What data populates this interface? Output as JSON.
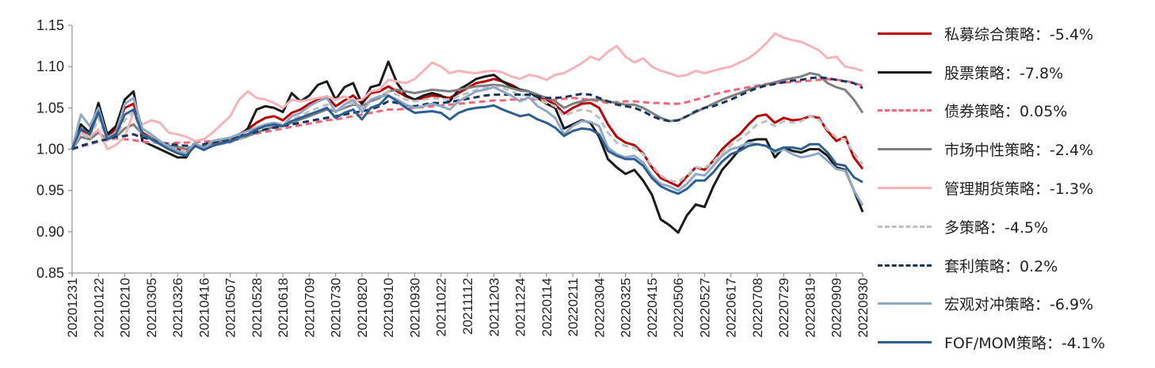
{
  "chart_data": {
    "type": "line",
    "title": "",
    "xlabel": "",
    "ylabel": "",
    "ylim": [
      0.85,
      1.15
    ],
    "yticks": [
      "0.85",
      "0.90",
      "0.95",
      "1.00",
      "1.05",
      "1.10",
      "1.15"
    ],
    "grid": false,
    "legend_position": "right",
    "x": [
      "20201231",
      "20210108",
      "20210115",
      "20210122",
      "20210129",
      "20210205",
      "20210210",
      "20210219",
      "20210226",
      "20210305",
      "20210312",
      "20210319",
      "20210326",
      "20210402",
      "20210409",
      "20210416",
      "20210423",
      "20210430",
      "20210507",
      "20210514",
      "20210521",
      "20210528",
      "20210604",
      "20210611",
      "20210618",
      "20210625",
      "20210702",
      "20210709",
      "20210716",
      "20210723",
      "20210730",
      "20210806",
      "20210813",
      "20210820",
      "20210827",
      "20210903",
      "20210910",
      "20210917",
      "20210924",
      "20210930",
      "20211008",
      "20211015",
      "20211022",
      "20211029",
      "20211105",
      "20211112",
      "20211119",
      "20211126",
      "20211203",
      "20211210",
      "20211217",
      "20211224",
      "20211231",
      "20220107",
      "20220114",
      "20220121",
      "20220128",
      "20220211",
      "20220218",
      "20220225",
      "20220304",
      "20220311",
      "20220318",
      "20220325",
      "20220401",
      "20220408",
      "20220415",
      "20220422",
      "20220429",
      "20220506",
      "20220513",
      "20220520",
      "20220527",
      "20220603",
      "20220610",
      "20220617",
      "20220624",
      "20220701",
      "20220708",
      "20220715",
      "20220722",
      "20220729",
      "20220805",
      "20220812",
      "20220819",
      "20220826",
      "20220902",
      "20220909",
      "20220916",
      "20220923",
      "20220930"
    ],
    "x_tick_labels": [
      "20201231",
      "20210122",
      "20210210",
      "20210305",
      "20210326",
      "20210416",
      "20210507",
      "20210528",
      "20210618",
      "20210709",
      "20210730",
      "20210820",
      "20210910",
      "20210930",
      "20211022",
      "20211112",
      "20211203",
      "20211224",
      "20220114",
      "20220211",
      "20220304",
      "20220325",
      "20220415",
      "20220506",
      "20220527",
      "20220617",
      "20220708",
      "20220729",
      "20220819",
      "20220909",
      "20220930"
    ],
    "series": [
      {
        "name": "私募综合策略：-5.4%",
        "color": "#C00000",
        "dash": "solid",
        "values": [
          1.0,
          1.024,
          1.016,
          1.047,
          1.015,
          1.025,
          1.05,
          1.055,
          1.02,
          1.014,
          1.008,
          1.003,
          1.0,
          0.996,
          1.005,
          1.002,
          1.007,
          1.01,
          1.012,
          1.018,
          1.024,
          1.032,
          1.038,
          1.04,
          1.035,
          1.044,
          1.048,
          1.055,
          1.06,
          1.064,
          1.052,
          1.059,
          1.065,
          1.055,
          1.068,
          1.07,
          1.076,
          1.07,
          1.064,
          1.06,
          1.062,
          1.065,
          1.064,
          1.062,
          1.068,
          1.074,
          1.08,
          1.082,
          1.085,
          1.082,
          1.078,
          1.072,
          1.07,
          1.064,
          1.06,
          1.054,
          1.043,
          1.05,
          1.055,
          1.056,
          1.05,
          1.03,
          1.015,
          1.008,
          1.005,
          0.995,
          0.978,
          0.965,
          0.96,
          0.955,
          0.967,
          0.978,
          0.975,
          0.986,
          1.0,
          1.01,
          1.018,
          1.03,
          1.04,
          1.042,
          1.032,
          1.038,
          1.035,
          1.036,
          1.04,
          1.038,
          1.022,
          1.01,
          1.015,
          0.99,
          0.976
        ]
      },
      {
        "name": "股票策略：-7.8%",
        "color": "#1A1A1A",
        "dash": "solid",
        "values": [
          1.0,
          1.03,
          1.02,
          1.056,
          1.018,
          1.028,
          1.06,
          1.07,
          1.01,
          1.005,
          1.0,
          0.995,
          0.99,
          0.99,
          1.008,
          1.0,
          1.005,
          1.008,
          1.01,
          1.015,
          1.025,
          1.048,
          1.052,
          1.05,
          1.045,
          1.068,
          1.058,
          1.065,
          1.078,
          1.082,
          1.06,
          1.075,
          1.08,
          1.055,
          1.075,
          1.078,
          1.106,
          1.08,
          1.065,
          1.06,
          1.065,
          1.068,
          1.065,
          1.058,
          1.072,
          1.078,
          1.085,
          1.088,
          1.09,
          1.082,
          1.076,
          1.072,
          1.07,
          1.062,
          1.055,
          1.05,
          1.025,
          1.03,
          1.035,
          1.032,
          1.015,
          0.988,
          0.978,
          0.97,
          0.975,
          0.962,
          0.945,
          0.915,
          0.908,
          0.899,
          0.92,
          0.933,
          0.93,
          0.955,
          0.975,
          0.987,
          1.0,
          1.01,
          1.012,
          1.012,
          0.99,
          1.002,
          0.998,
          0.996,
          1.0,
          1.0,
          0.992,
          0.978,
          0.975,
          0.95,
          0.924
        ]
      },
      {
        "name": "债券策略：0.05%",
        "color": "#F26677",
        "dash": "dashed",
        "values": [
          1.0,
          1.003,
          1.006,
          1.009,
          1.011,
          1.013,
          1.012,
          1.011,
          1.009,
          1.008,
          1.008,
          1.007,
          1.008,
          1.008,
          1.009,
          1.009,
          1.01,
          1.012,
          1.013,
          1.015,
          1.017,
          1.019,
          1.021,
          1.023,
          1.025,
          1.027,
          1.029,
          1.031,
          1.033,
          1.035,
          1.036,
          1.038,
          1.04,
          1.042,
          1.044,
          1.046,
          1.048,
          1.048,
          1.049,
          1.05,
          1.051,
          1.052,
          1.053,
          1.054,
          1.055,
          1.056,
          1.057,
          1.058,
          1.059,
          1.059,
          1.06,
          1.06,
          1.061,
          1.06,
          1.059,
          1.06,
          1.061,
          1.062,
          1.061,
          1.06,
          1.058,
          1.056,
          1.057,
          1.058,
          1.058,
          1.057,
          1.056,
          1.056,
          1.055,
          1.055,
          1.057,
          1.06,
          1.063,
          1.066,
          1.069,
          1.071,
          1.073,
          1.075,
          1.077,
          1.079,
          1.08,
          1.081,
          1.081,
          1.082,
          1.083,
          1.084,
          1.085,
          1.084,
          1.083,
          1.08,
          1.077
        ]
      },
      {
        "name": "市场中性策略：-2.4%",
        "color": "#7F7F7F",
        "dash": "solid",
        "values": [
          1.0,
          1.015,
          1.012,
          1.02,
          1.012,
          1.015,
          1.025,
          1.03,
          1.018,
          1.014,
          1.008,
          1.004,
          1.003,
          1.0,
          1.005,
          1.003,
          1.006,
          1.009,
          1.01,
          1.012,
          1.016,
          1.02,
          1.024,
          1.027,
          1.028,
          1.032,
          1.036,
          1.04,
          1.044,
          1.048,
          1.046,
          1.05,
          1.054,
          1.052,
          1.058,
          1.062,
          1.07,
          1.072,
          1.07,
          1.068,
          1.07,
          1.072,
          1.071,
          1.07,
          1.072,
          1.074,
          1.076,
          1.077,
          1.078,
          1.077,
          1.074,
          1.071,
          1.07,
          1.066,
          1.062,
          1.058,
          1.05,
          1.055,
          1.058,
          1.06,
          1.06,
          1.058,
          1.056,
          1.054,
          1.054,
          1.05,
          1.044,
          1.038,
          1.034,
          1.035,
          1.04,
          1.045,
          1.05,
          1.055,
          1.06,
          1.064,
          1.068,
          1.072,
          1.076,
          1.078,
          1.081,
          1.084,
          1.086,
          1.088,
          1.092,
          1.09,
          1.08,
          1.075,
          1.072,
          1.06,
          1.044
        ]
      },
      {
        "name": "管理期货策略：-1.3%",
        "color": "#F7B3B8",
        "dash": "solid",
        "values": [
          1.0,
          1.02,
          1.015,
          1.024,
          1.0,
          1.005,
          1.015,
          1.045,
          1.03,
          1.035,
          1.032,
          1.02,
          1.018,
          1.015,
          1.01,
          1.012,
          1.02,
          1.03,
          1.04,
          1.06,
          1.07,
          1.062,
          1.06,
          1.056,
          1.05,
          1.06,
          1.058,
          1.06,
          1.062,
          1.064,
          1.06,
          1.064,
          1.058,
          1.06,
          1.07,
          1.072,
          1.084,
          1.082,
          1.08,
          1.085,
          1.095,
          1.105,
          1.1,
          1.092,
          1.095,
          1.093,
          1.092,
          1.094,
          1.095,
          1.093,
          1.088,
          1.085,
          1.09,
          1.088,
          1.084,
          1.09,
          1.092,
          1.098,
          1.104,
          1.112,
          1.108,
          1.118,
          1.125,
          1.112,
          1.105,
          1.11,
          1.1,
          1.095,
          1.092,
          1.088,
          1.09,
          1.095,
          1.092,
          1.095,
          1.098,
          1.1,
          1.105,
          1.11,
          1.118,
          1.128,
          1.14,
          1.135,
          1.132,
          1.13,
          1.125,
          1.12,
          1.11,
          1.112,
          1.1,
          1.098,
          1.095
        ]
      },
      {
        "name": "多策略：-4.5%",
        "color": "#BFBFBF",
        "dash": "dashed",
        "values": [
          1.0,
          1.02,
          1.012,
          1.038,
          1.01,
          1.015,
          1.035,
          1.045,
          1.015,
          1.01,
          1.006,
          1.002,
          1.0,
          0.996,
          1.003,
          1.0,
          1.004,
          1.006,
          1.008,
          1.012,
          1.018,
          1.026,
          1.03,
          1.032,
          1.03,
          1.036,
          1.04,
          1.046,
          1.05,
          1.054,
          1.046,
          1.052,
          1.056,
          1.05,
          1.06,
          1.064,
          1.07,
          1.066,
          1.06,
          1.058,
          1.06,
          1.062,
          1.061,
          1.06,
          1.064,
          1.068,
          1.072,
          1.074,
          1.076,
          1.074,
          1.07,
          1.066,
          1.065,
          1.06,
          1.056,
          1.052,
          1.04,
          1.045,
          1.048,
          1.046,
          1.038,
          1.02,
          1.008,
          1.004,
          1.002,
          0.994,
          0.98,
          0.968,
          0.962,
          0.96,
          0.968,
          0.978,
          0.977,
          0.985,
          0.996,
          1.005,
          1.012,
          1.02,
          1.03,
          1.034,
          1.028,
          1.034,
          1.032,
          1.034,
          1.04,
          1.036,
          1.024,
          1.014,
          1.012,
          0.995,
          0.982
        ]
      },
      {
        "name": "套利策略：0.2%",
        "color": "#17375E",
        "dash": "dashed",
        "values": [
          1.0,
          1.004,
          1.007,
          1.01,
          1.012,
          1.015,
          1.016,
          1.018,
          1.014,
          1.012,
          1.008,
          1.006,
          1.005,
          1.004,
          1.006,
          1.006,
          1.008,
          1.01,
          1.012,
          1.015,
          1.018,
          1.021,
          1.024,
          1.026,
          1.028,
          1.03,
          1.032,
          1.034,
          1.036,
          1.038,
          1.04,
          1.042,
          1.044,
          1.046,
          1.048,
          1.052,
          1.058,
          1.056,
          1.053,
          1.052,
          1.054,
          1.056,
          1.056,
          1.057,
          1.059,
          1.061,
          1.063,
          1.065,
          1.066,
          1.066,
          1.066,
          1.066,
          1.066,
          1.064,
          1.062,
          1.062,
          1.063,
          1.065,
          1.067,
          1.066,
          1.062,
          1.058,
          1.054,
          1.052,
          1.05,
          1.046,
          1.04,
          1.036,
          1.034,
          1.035,
          1.04,
          1.046,
          1.05,
          1.052,
          1.056,
          1.06,
          1.065,
          1.07,
          1.074,
          1.077,
          1.079,
          1.081,
          1.083,
          1.084,
          1.086,
          1.087,
          1.086,
          1.084,
          1.082,
          1.08,
          1.074
        ]
      },
      {
        "name": "宏观对冲策略：-6.9%",
        "color": "#8EA9C8",
        "dash": "solid",
        "values": [
          1.0,
          1.042,
          1.028,
          1.05,
          1.014,
          1.02,
          1.055,
          1.062,
          1.025,
          1.018,
          1.01,
          1.003,
          0.998,
          0.994,
          1.008,
          1.0,
          1.01,
          1.012,
          1.014,
          1.018,
          1.022,
          1.026,
          1.03,
          1.032,
          1.028,
          1.04,
          1.044,
          1.052,
          1.058,
          1.062,
          1.045,
          1.054,
          1.06,
          1.045,
          1.06,
          1.064,
          1.065,
          1.06,
          1.054,
          1.05,
          1.052,
          1.055,
          1.052,
          1.048,
          1.058,
          1.064,
          1.07,
          1.072,
          1.075,
          1.07,
          1.065,
          1.058,
          1.063,
          1.052,
          1.046,
          1.038,
          1.018,
          1.028,
          1.034,
          1.033,
          1.028,
          1.002,
          0.994,
          0.99,
          0.992,
          0.984,
          0.968,
          0.958,
          0.955,
          0.95,
          0.958,
          0.97,
          0.968,
          0.98,
          0.992,
          1.0,
          1.003,
          1.008,
          1.006,
          1.004,
          0.996,
          1.0,
          0.994,
          0.99,
          0.992,
          0.995,
          0.986,
          0.976,
          0.974,
          0.95,
          0.932
        ]
      },
      {
        "name": "FOF/MOM策略：-4.1%",
        "color": "#2E5F93",
        "dash": "solid",
        "values": [
          1.0,
          1.025,
          1.018,
          1.045,
          1.012,
          1.018,
          1.042,
          1.048,
          1.018,
          1.012,
          1.006,
          1.0,
          0.995,
          0.992,
          1.004,
          0.999,
          1.004,
          1.007,
          1.009,
          1.014,
          1.018,
          1.024,
          1.028,
          1.03,
          1.028,
          1.034,
          1.038,
          1.042,
          1.046,
          1.05,
          1.038,
          1.044,
          1.048,
          1.036,
          1.05,
          1.054,
          1.065,
          1.058,
          1.05,
          1.044,
          1.045,
          1.046,
          1.044,
          1.036,
          1.044,
          1.048,
          1.05,
          1.051,
          1.053,
          1.048,
          1.044,
          1.04,
          1.042,
          1.036,
          1.032,
          1.026,
          1.016,
          1.022,
          1.025,
          1.024,
          1.018,
          0.998,
          0.992,
          0.988,
          0.988,
          0.98,
          0.965,
          0.955,
          0.95,
          0.946,
          0.952,
          0.962,
          0.962,
          0.972,
          0.985,
          0.994,
          0.998,
          1.004,
          1.006,
          1.004,
          0.998,
          1.002,
          1.002,
          1.0,
          1.006,
          1.006,
          0.996,
          0.982,
          0.98,
          0.966,
          0.96
        ]
      }
    ]
  }
}
